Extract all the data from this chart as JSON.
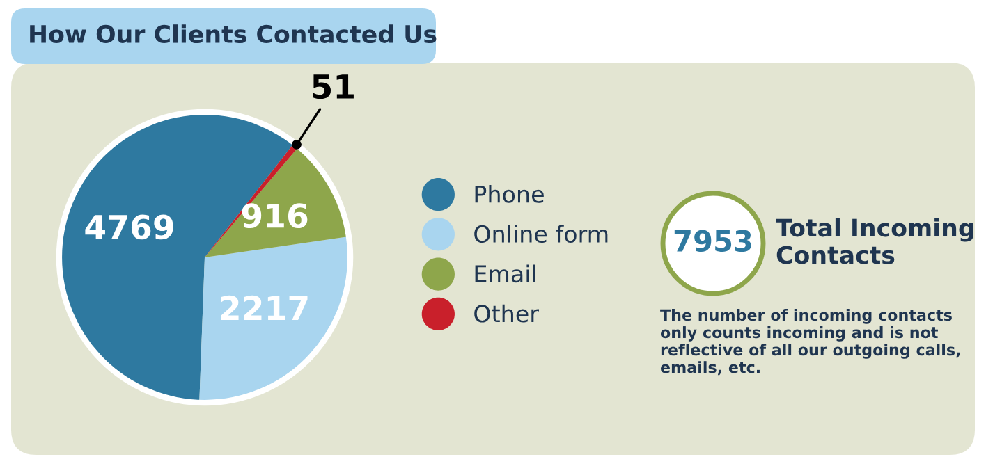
{
  "chart_data": {
    "type": "pie",
    "title": "How Our Clients Contacted Us",
    "categories": [
      "Phone",
      "Online form",
      "Email",
      "Other"
    ],
    "values": [
      4769,
      2217,
      916,
      51
    ],
    "colors": [
      "#2e79a0",
      "#a9d5ef",
      "#8ea64b",
      "#c9202b"
    ],
    "data_labels": true,
    "legend": "right",
    "annotations": [
      "7953",
      "Total Incoming Contacts",
      "The number of incoming contacts only counts incoming and is not reflective of all our outgoing calls, emails, etc."
    ]
  }
}
